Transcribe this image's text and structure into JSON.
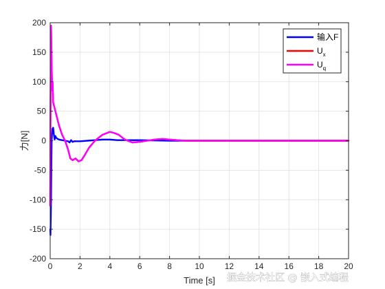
{
  "chart_data": {
    "type": "line",
    "xlabel": "Time [s]",
    "ylabel": "力[N]",
    "xlim": [
      0,
      20
    ],
    "ylim": [
      -200,
      200
    ],
    "xticks": [
      0,
      2,
      4,
      6,
      8,
      10,
      12,
      14,
      16,
      18,
      20
    ],
    "yticks": [
      -200,
      -150,
      -100,
      -50,
      0,
      50,
      100,
      150,
      200
    ],
    "grid": true,
    "legend_position": "top-right",
    "series": [
      {
        "name": "输入F",
        "legend_main": "输入F",
        "legend_sub": "",
        "color": "#0000ff",
        "x": [
          0,
          0.02,
          0.04,
          0.06,
          0.08,
          0.1,
          0.12,
          0.15,
          0.2,
          0.25,
          0.3,
          0.35,
          0.4,
          0.5,
          0.6,
          0.8,
          1.0,
          1.2,
          1.3,
          1.4,
          1.5,
          1.6,
          1.8,
          2.0,
          2.5,
          3.0,
          3.5,
          4.0,
          4.5,
          5.0,
          6.0,
          8.0,
          10.0,
          12.0,
          14.0,
          16.0,
          18.0,
          20.0
        ],
        "y": [
          -150,
          -160,
          -130,
          -100,
          -40,
          0,
          10,
          20,
          22,
          10,
          2,
          8,
          5,
          3,
          2,
          1,
          0,
          -1,
          -3,
          1,
          -2,
          -1,
          -1,
          -1,
          0,
          1,
          2,
          2,
          1,
          1,
          1,
          0,
          0,
          0,
          0,
          0,
          0,
          0
        ]
      },
      {
        "name": "Ux",
        "legend_main": "U",
        "legend_sub": "x",
        "color": "#ff0000",
        "x": [
          0,
          0.03,
          0.06,
          0.1,
          0.13,
          0.16,
          0.2,
          0.25,
          0.3,
          0.4,
          0.5,
          0.6,
          0.8,
          1.0,
          1.2,
          1.35,
          1.5,
          1.7,
          1.9,
          2.1,
          2.3,
          2.6,
          3.0,
          3.5,
          3.8,
          4.0,
          4.3,
          4.6,
          5.0,
          5.5,
          6.0,
          6.5,
          7.0,
          7.5,
          8.0,
          8.5,
          9.0,
          10.0,
          12.0,
          14.0,
          16.0,
          18.0,
          20.0
        ],
        "y": [
          -110,
          100,
          195,
          130,
          85,
          100,
          65,
          60,
          55,
          45,
          35,
          25,
          10,
          0,
          -15,
          -30,
          -33,
          -30,
          -35,
          -33,
          -25,
          -12,
          0,
          10,
          13,
          15,
          13,
          10,
          2,
          -3,
          -2,
          0,
          2,
          3,
          2,
          1,
          0,
          0,
          0,
          0,
          0,
          0,
          0
        ]
      },
      {
        "name": "Uq",
        "legend_main": "U",
        "legend_sub": "q",
        "color": "#ff00ff",
        "x": [
          0,
          0.03,
          0.06,
          0.1,
          0.13,
          0.16,
          0.2,
          0.25,
          0.3,
          0.4,
          0.5,
          0.6,
          0.8,
          1.0,
          1.2,
          1.35,
          1.5,
          1.7,
          1.9,
          2.1,
          2.3,
          2.6,
          3.0,
          3.5,
          3.8,
          4.0,
          4.3,
          4.6,
          5.0,
          5.5,
          6.0,
          6.5,
          7.0,
          7.5,
          8.0,
          8.5,
          9.0,
          10.0,
          12.0,
          14.0,
          16.0,
          18.0,
          20.0
        ],
        "y": [
          -110,
          100,
          195,
          130,
          85,
          100,
          65,
          60,
          55,
          45,
          35,
          25,
          10,
          0,
          -15,
          -30,
          -33,
          -30,
          -35,
          -33,
          -25,
          -12,
          0,
          10,
          13,
          15,
          13,
          10,
          2,
          -3,
          -2,
          0,
          2,
          3,
          2,
          1,
          0,
          0,
          0,
          0,
          0,
          0,
          0
        ]
      }
    ]
  },
  "watermark": "掘金技术社区 @ 嵌入式编程"
}
